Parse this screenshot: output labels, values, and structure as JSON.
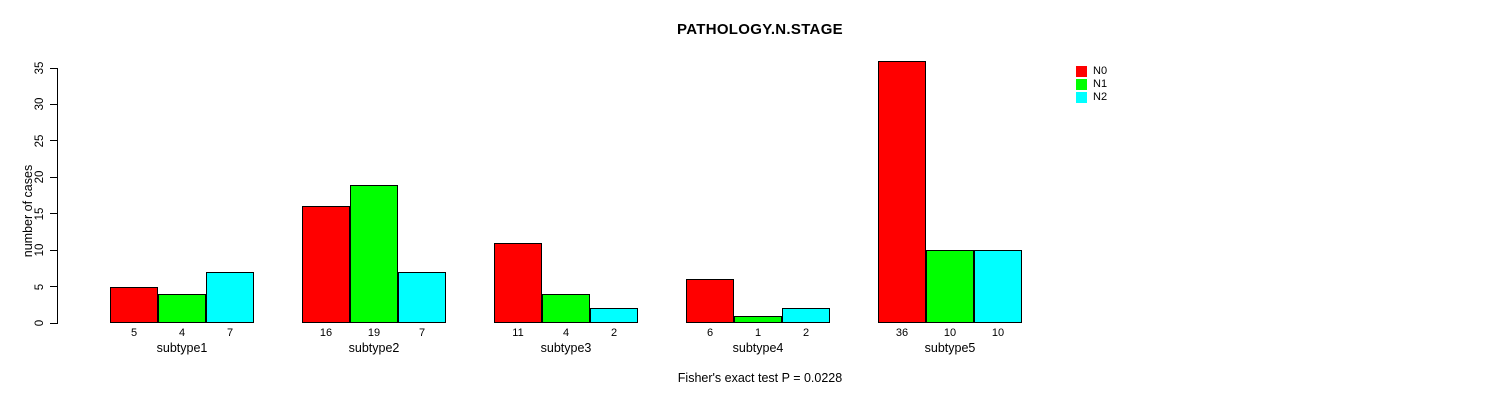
{
  "chart_data": {
    "type": "bar",
    "grouped": true,
    "title": "PATHOLOGY.N.STAGE",
    "xlabel": "",
    "ylabel": "number of cases",
    "ylim": [
      0,
      35
    ],
    "yticks": [
      0,
      5,
      10,
      15,
      20,
      25,
      30,
      35
    ],
    "categories": [
      "subtype1",
      "subtype2",
      "subtype3",
      "subtype4",
      "subtype5"
    ],
    "series": [
      {
        "name": "N0",
        "color": "#ff0000",
        "values": [
          5,
          16,
          11,
          6,
          36
        ]
      },
      {
        "name": "N1",
        "color": "#00ff00",
        "values": [
          4,
          19,
          4,
          1,
          10
        ]
      },
      {
        "name": "N2",
        "color": "#00ffff",
        "values": [
          7,
          7,
          2,
          2,
          10
        ]
      }
    ],
    "bar_value_labels_shown": true,
    "legend_position": "top-right",
    "grid": false,
    "annotation": "Fisher's exact test P = 0.0228"
  }
}
